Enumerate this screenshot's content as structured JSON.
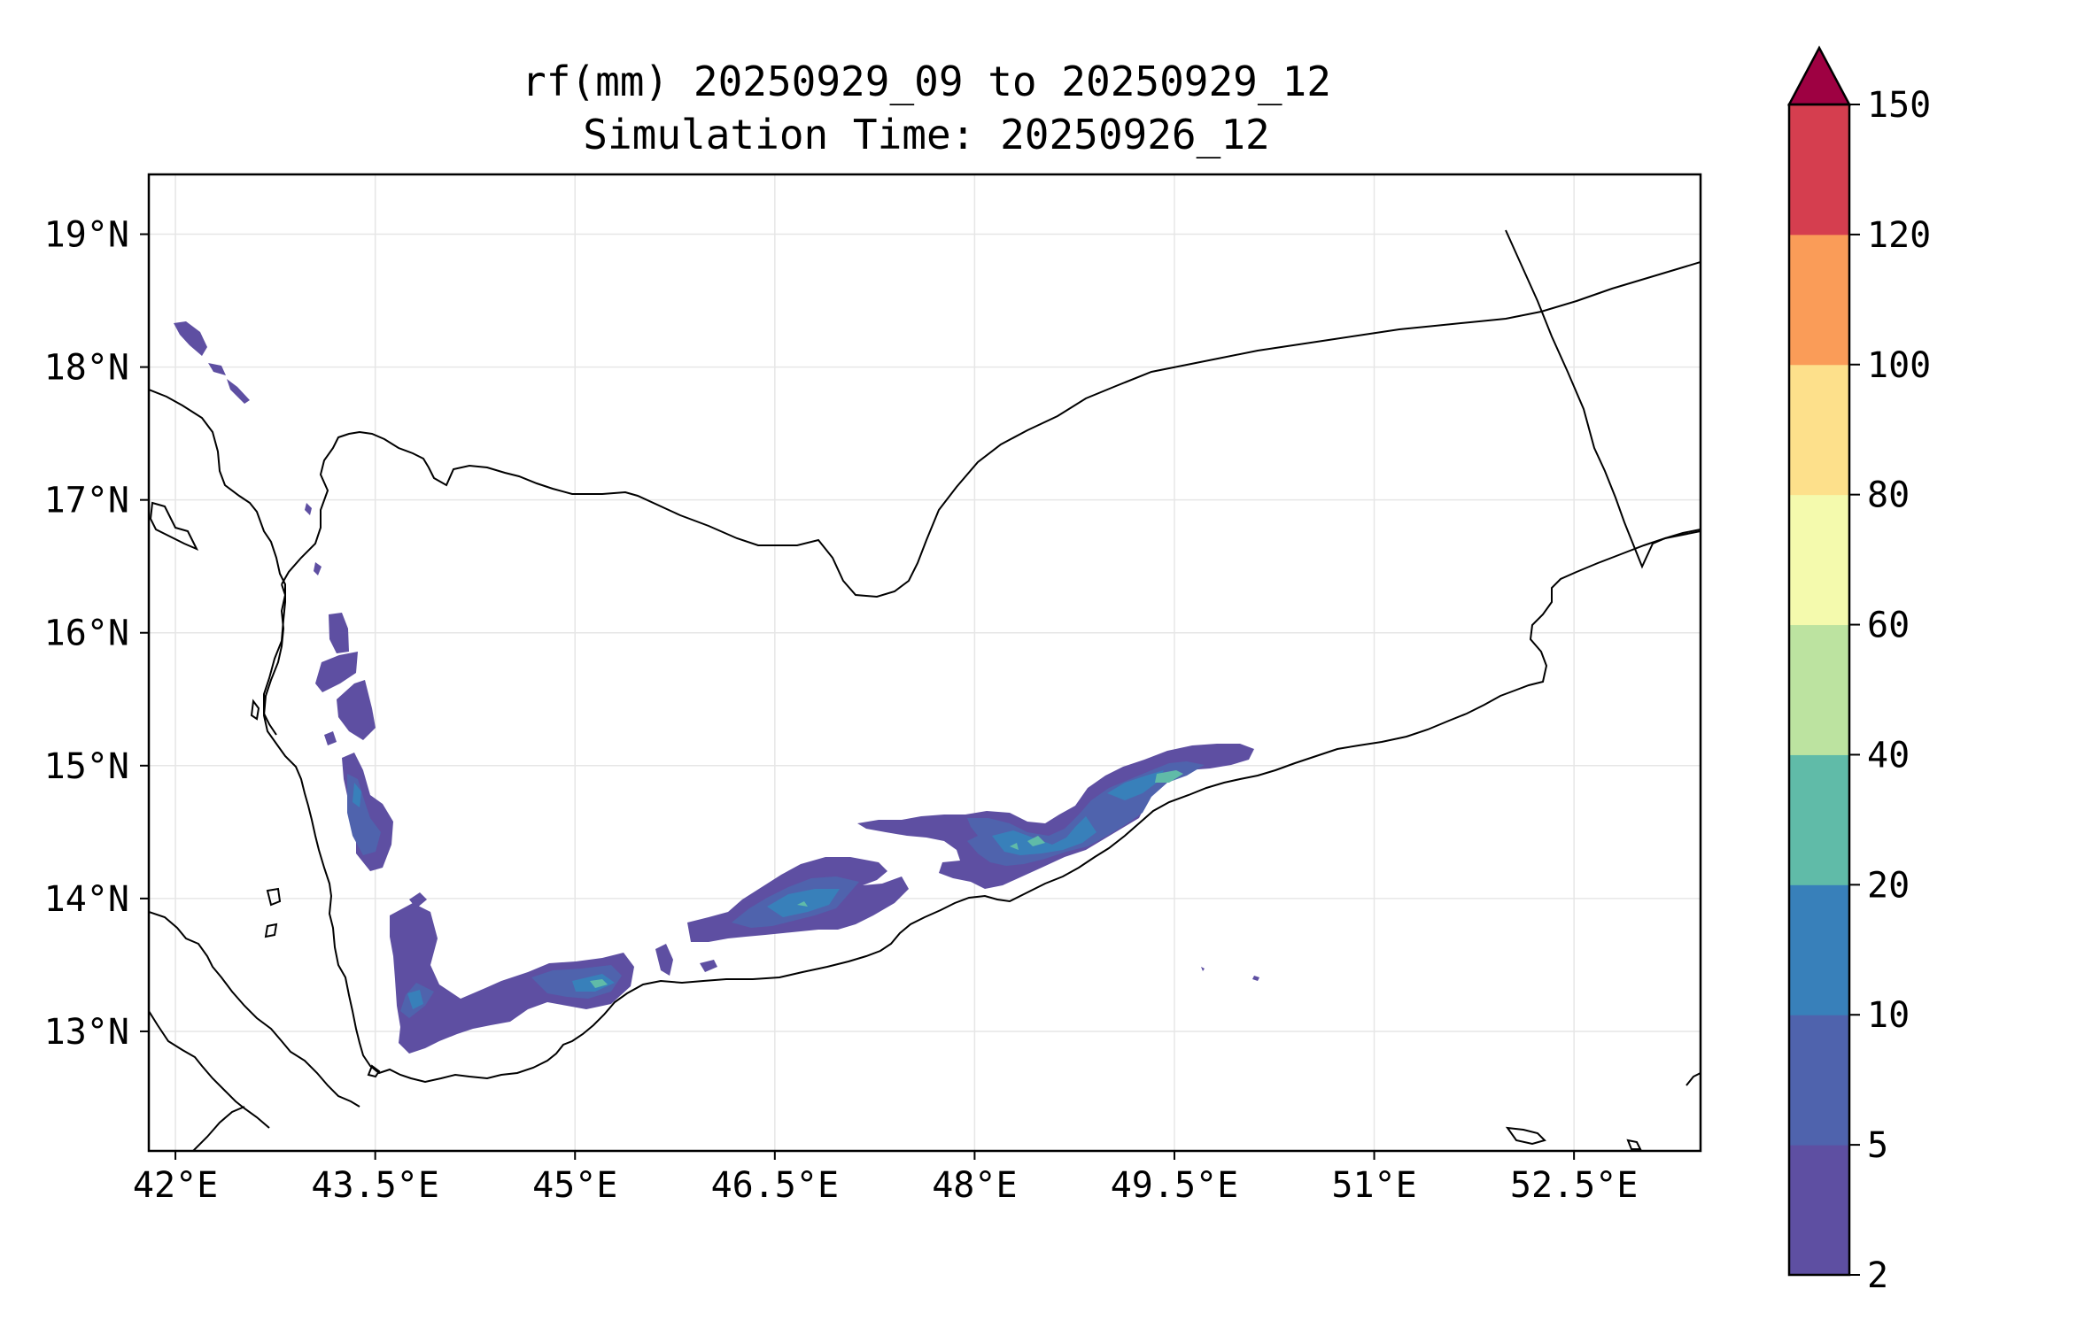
{
  "title": {
    "line1": "rf(mm) 20250929_09 to 20250929_12",
    "line2": "Simulation Time: 20250926_12"
  },
  "map": {
    "lon_range": [
      41.8,
      53.45
    ],
    "lat_range": [
      12.1,
      19.45
    ],
    "lon_ticks": [
      "42°E",
      "43.5°E",
      "45°E",
      "46.5°E",
      "48°E",
      "49.5°E",
      "51°E",
      "52.5°E"
    ],
    "lat_ticks": [
      "13°N",
      "14°N",
      "15°N",
      "16°N",
      "17°N",
      "18°N",
      "19°N"
    ],
    "grid": true
  },
  "colorbar": {
    "levels": [
      "2",
      "5",
      "10",
      "20",
      "40",
      "60",
      "80",
      "100",
      "120",
      "150"
    ],
    "colors": [
      "#5e4fa2",
      "#4f63ad",
      "#3880ba",
      "#60bba8",
      "#bce3a0",
      "#f4faad",
      "#fde08b",
      "#fa9c58",
      "#d53e4f",
      "#9e0142"
    ],
    "extend": "max"
  }
}
